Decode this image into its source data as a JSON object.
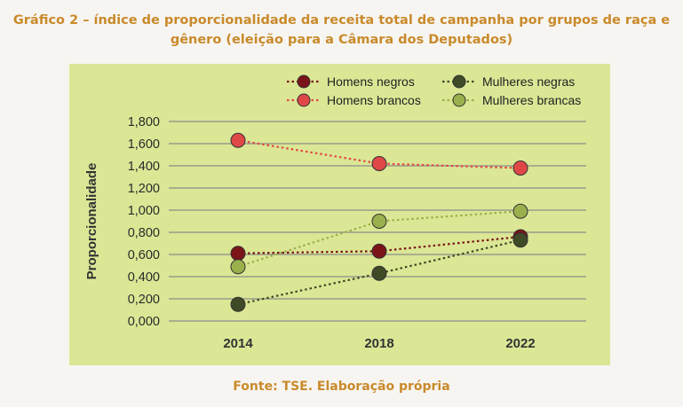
{
  "title_line1": "Gráfico 2 – índice de proporcionalidade da receita total de campanha por grupos de raça e",
  "title_line2": "gênero (eleição para a Câmara dos Deputados)",
  "source": "Fonte: TSE. Elaboração própria",
  "chart_data": {
    "type": "line",
    "ylabel": "Proporcionalidade",
    "xlabel": "",
    "categories": [
      "2014",
      "2018",
      "2022"
    ],
    "ylim": [
      0,
      1.8
    ],
    "yticks": [
      "0,000",
      "0,200",
      "0,400",
      "0,600",
      "0,800",
      "1,000",
      "1,200",
      "1,400",
      "1,600",
      "1,800"
    ],
    "grid": true,
    "legend_position": "top-right",
    "series": [
      {
        "name": "Homens negros",
        "values": [
          0.61,
          0.63,
          0.76
        ],
        "color": "#7b1418",
        "line_color": "#7b1418"
      },
      {
        "name": "Mulheres negras",
        "values": [
          0.15,
          0.43,
          0.73
        ],
        "color": "#3f4a26",
        "line_color": "#3f4a26"
      },
      {
        "name": "Homens brancos",
        "values": [
          1.63,
          1.42,
          1.38
        ],
        "color": "#e04848",
        "line_color": "#e04848"
      },
      {
        "name": "Mulheres brancas",
        "values": [
          0.49,
          0.9,
          0.99
        ],
        "color": "#9ab04c",
        "line_color": "#9ab04c"
      }
    ]
  }
}
